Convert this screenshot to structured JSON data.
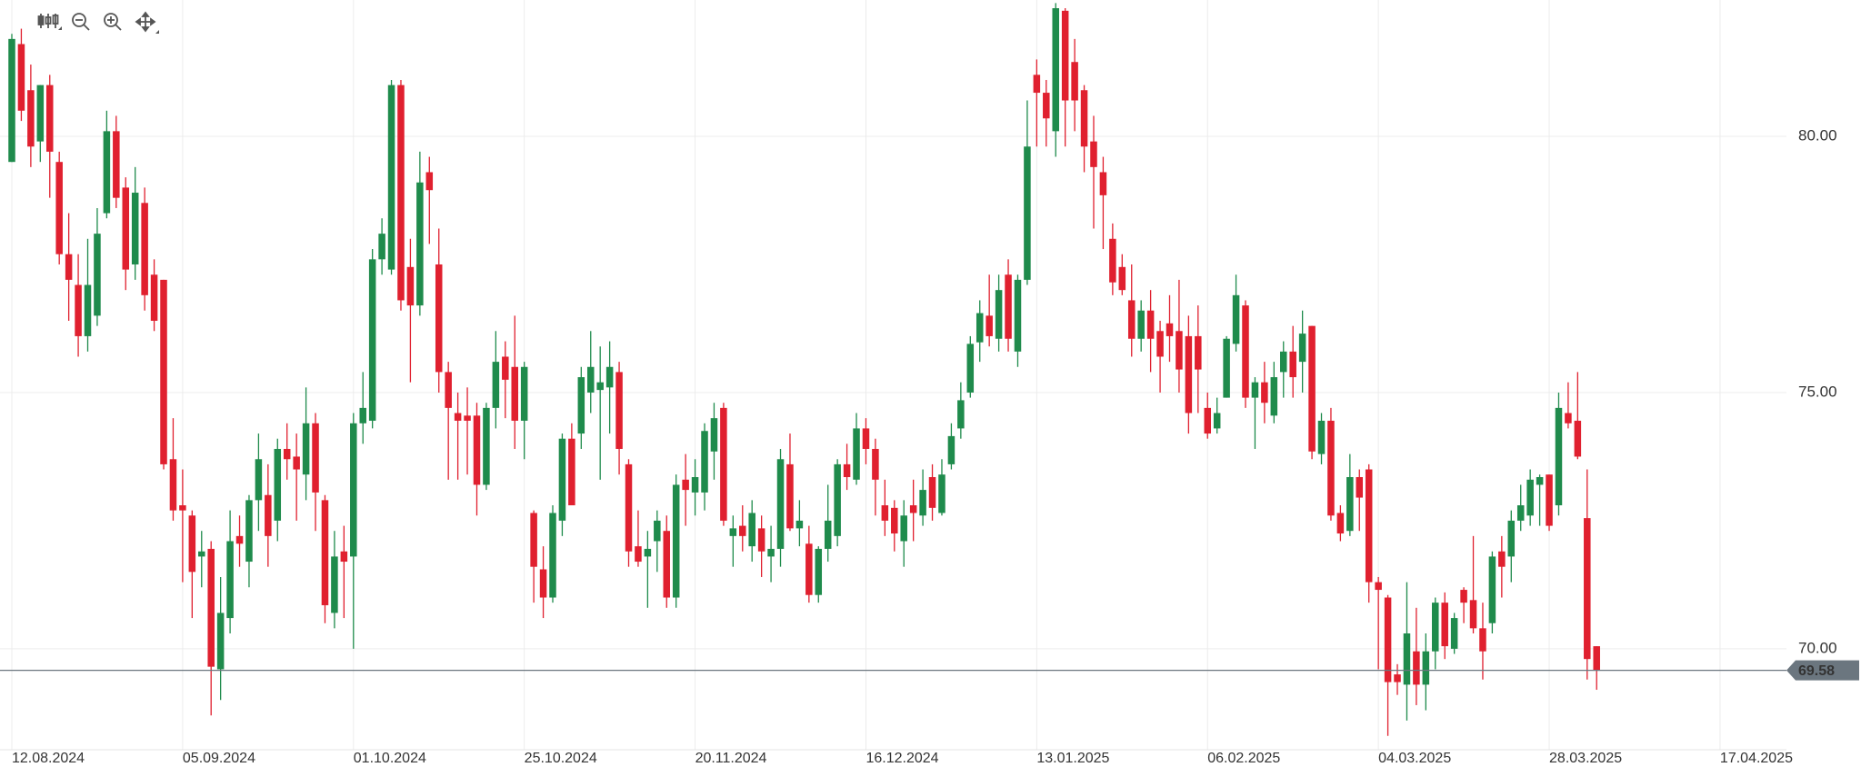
{
  "chart_data": {
    "type": "candlestick",
    "categories": [
      "12.08.2024",
      null,
      null,
      null,
      null,
      null,
      null,
      null,
      null,
      null,
      null,
      null,
      null,
      null,
      null,
      null,
      null,
      null,
      "05.09.2024",
      null,
      null,
      null,
      null,
      null,
      null,
      null,
      null,
      null,
      null,
      null,
      null,
      null,
      null,
      null,
      null,
      null,
      "01.10.2024",
      null,
      null,
      null,
      null,
      null,
      null,
      null,
      null,
      null,
      null,
      null,
      null,
      null,
      null,
      null,
      null,
      null,
      "25.10.2024",
      null,
      null,
      null,
      null,
      null,
      null,
      null,
      null,
      null,
      null,
      null,
      null,
      null,
      null,
      null,
      null,
      null,
      "20.11.2024",
      null,
      null,
      null,
      null,
      null,
      null,
      null,
      null,
      null,
      null,
      null,
      null,
      null,
      null,
      null,
      null,
      null,
      "16.12.2024",
      null,
      null,
      null,
      null,
      null,
      null,
      null,
      null,
      null,
      null,
      null,
      null,
      null,
      null,
      null,
      null,
      null,
      "13.01.2025",
      null,
      null,
      null,
      null,
      null,
      null,
      null,
      null,
      null,
      null,
      null,
      null,
      null,
      null,
      null,
      null,
      null,
      "06.02.2025",
      null,
      null,
      null,
      null,
      null,
      null,
      null,
      null,
      null,
      null,
      null,
      null,
      null,
      null,
      null,
      null,
      null,
      "04.03.2025",
      null,
      null,
      null,
      null,
      null,
      null,
      null,
      null,
      null,
      null,
      null,
      null,
      null,
      null,
      null,
      null,
      null,
      "28.03.2025",
      null,
      null,
      null,
      null,
      null,
      null,
      null,
      null,
      null,
      null,
      null,
      null,
      null,
      null,
      null,
      null,
      null,
      "17.04.2025"
    ],
    "open": [
      79.5,
      81.8,
      80.9,
      79.9,
      81.0,
      79.5,
      77.7,
      77.1,
      76.1,
      76.5,
      78.5,
      80.1,
      79.0,
      77.5,
      78.7,
      77.3,
      77.2,
      73.7,
      72.8,
      72.6,
      71.8,
      71.95,
      69.6,
      70.6,
      72.2,
      71.7,
      72.9,
      73.0,
      72.5,
      73.9,
      73.75,
      73.4,
      74.4,
      72.9,
      70.7,
      71.9,
      71.8,
      74.4,
      74.45,
      77.6,
      77.4,
      81.0,
      77.45,
      76.7,
      79.3,
      77.5,
      75.4,
      74.6,
      74.55,
      74.55,
      73.2,
      74.7,
      75.7,
      75.5,
      74.45,
      72.65,
      71.55,
      71.0,
      72.5,
      74.1,
      74.2,
      75.0,
      75.05,
      75.1,
      75.4,
      73.6,
      72.0,
      71.8,
      72.1,
      72.3,
      71.0,
      73.3,
      73.05,
      73.05,
      73.85,
      74.7,
      72.2,
      72.4,
      72.0,
      72.35,
      71.8,
      71.95,
      73.6,
      72.35,
      72.05,
      71.05,
      71.95,
      72.2,
      73.6,
      73.3,
      74.3,
      73.9,
      72.8,
      72.75,
      72.1,
      72.8,
      72.6,
      73.35,
      72.65,
      73.6,
      74.3,
      75.0,
      75.98,
      76.5,
      76.05,
      77.3,
      75.8,
      77.2,
      81.2,
      80.85,
      80.1,
      82.45,
      81.45,
      80.9,
      79.9,
      79.3,
      78.0,
      77.45,
      76.8,
      76.05,
      76.6,
      76.2,
      76.35,
      76.2,
      76.1,
      76.1,
      74.7,
      74.3,
      74.9,
      75.95,
      76.7,
      74.9,
      75.2,
      74.55,
      75.4,
      75.8,
      75.6,
      76.3,
      73.8,
      74.45,
      72.65,
      72.3,
      73.35,
      73.5,
      71.3,
      71.0,
      69.5,
      69.3,
      69.95,
      69.3,
      69.95,
      70.9,
      70.0,
      71.15,
      70.95,
      70.4,
      70.5,
      71.9,
      71.8,
      72.5,
      72.6,
      73.2,
      73.4,
      72.8,
      74.6,
      74.45,
      72.55,
      70.05,
      null,
      null,
      null,
      null,
      null,
      null,
      null,
      null,
      null,
      null,
      null,
      null,
      null
    ],
    "high": [
      82.0,
      82.1,
      81.4,
      81.0,
      81.2,
      79.7,
      78.5,
      77.7,
      78.0,
      78.6,
      80.5,
      80.4,
      79.2,
      79.4,
      79.0,
      77.6,
      77.2,
      74.5,
      73.5,
      72.7,
      72.3,
      72.1,
      71.4,
      72.7,
      72.6,
      73.0,
      74.2,
      73.6,
      74.1,
      74.4,
      74.2,
      75.1,
      74.6,
      73.0,
      72.3,
      72.4,
      74.6,
      75.4,
      77.8,
      78.4,
      81.1,
      81.1,
      78.0,
      79.7,
      79.6,
      78.2,
      75.6,
      75.0,
      75.1,
      74.8,
      74.8,
      76.2,
      76.0,
      76.5,
      75.6,
      72.7,
      72.0,
      72.8,
      74.2,
      74.4,
      75.5,
      76.2,
      75.9,
      76.0,
      75.6,
      73.7,
      72.7,
      72.3,
      72.7,
      72.6,
      73.4,
      73.8,
      73.7,
      74.4,
      74.8,
      74.8,
      72.6,
      72.8,
      72.9,
      72.6,
      72.4,
      73.9,
      74.2,
      72.9,
      72.4,
      72.0,
      73.2,
      73.7,
      74.0,
      74.6,
      74.5,
      74.1,
      73.3,
      72.9,
      72.9,
      73.3,
      73.5,
      73.6,
      73.7,
      74.4,
      75.2,
      76.1,
      76.8,
      77.3,
      77.3,
      77.6,
      77.3,
      80.7,
      81.5,
      81.1,
      82.6,
      82.5,
      81.9,
      81.0,
      80.4,
      79.6,
      78.3,
      77.7,
      77.5,
      76.8,
      77.0,
      76.4,
      76.9,
      77.2,
      76.5,
      76.7,
      75.0,
      74.9,
      76.1,
      77.3,
      76.8,
      75.3,
      75.6,
      75.6,
      76.0,
      76.3,
      76.6,
      76.3,
      74.6,
      74.7,
      72.8,
      73.8,
      73.5,
      73.6,
      71.4,
      71.05,
      69.7,
      71.3,
      70.8,
      70.3,
      71.0,
      71.1,
      70.7,
      71.2,
      72.2,
      70.9,
      71.9,
      72.2,
      72.7,
      73.2,
      73.5,
      73.4,
      73.4,
      75.0,
      75.2,
      75.4,
      73.5,
      70.05,
      null,
      null,
      null,
      null,
      null,
      null,
      null,
      null,
      null,
      null,
      null,
      null,
      null
    ],
    "low": [
      79.5,
      80.3,
      79.4,
      79.5,
      78.8,
      77.5,
      76.4,
      75.7,
      75.8,
      76.3,
      78.4,
      78.6,
      77.0,
      77.2,
      76.6,
      76.2,
      73.5,
      72.5,
      71.3,
      70.6,
      71.2,
      68.7,
      69.0,
      70.3,
      71.6,
      71.2,
      72.3,
      71.6,
      72.1,
      73.3,
      72.5,
      72.9,
      72.3,
      70.5,
      70.4,
      70.6,
      70.0,
      74.0,
      74.3,
      77.3,
      77.3,
      76.6,
      75.2,
      76.5,
      77.9,
      75.0,
      73.3,
      73.3,
      73.4,
      72.6,
      73.1,
      74.3,
      74.5,
      73.9,
      73.7,
      70.9,
      70.6,
      70.9,
      72.2,
      72.8,
      73.9,
      74.6,
      73.3,
      74.2,
      73.4,
      71.6,
      71.6,
      70.8,
      71.5,
      70.8,
      70.8,
      72.4,
      72.6,
      72.7,
      73.3,
      72.4,
      71.6,
      71.9,
      71.7,
      71.4,
      71.3,
      71.6,
      72.3,
      72.0,
      70.9,
      70.9,
      71.7,
      72.0,
      73.1,
      73.2,
      73.6,
      72.6,
      72.2,
      71.9,
      71.6,
      72.1,
      72.4,
      72.5,
      72.6,
      73.5,
      74.1,
      74.9,
      75.6,
      75.9,
      75.8,
      75.8,
      75.5,
      77.1,
      79.8,
      79.8,
      79.6,
      79.8,
      80.1,
      79.3,
      78.2,
      77.8,
      76.9,
      76.9,
      75.7,
      75.8,
      75.4,
      75.0,
      75.6,
      75.0,
      74.2,
      74.6,
      74.1,
      74.2,
      74.9,
      75.8,
      74.7,
      73.9,
      74.4,
      74.4,
      74.9,
      74.9,
      75.0,
      73.7,
      73.6,
      72.5,
      72.1,
      72.2,
      72.3,
      70.9,
      69.6,
      68.3,
      69.1,
      68.6,
      68.9,
      68.8,
      69.6,
      69.8,
      69.9,
      70.5,
      70.3,
      69.4,
      70.3,
      71.0,
      71.3,
      72.3,
      72.4,
      72.4,
      72.3,
      72.6,
      74.3,
      73.7,
      69.4,
      69.2,
      null,
      null,
      null,
      null,
      null,
      null,
      null,
      null,
      null,
      null,
      null,
      null,
      null
    ],
    "close": [
      81.9,
      80.5,
      79.8,
      81.0,
      79.7,
      77.7,
      77.2,
      76.1,
      77.1,
      78.1,
      80.1,
      78.8,
      77.4,
      78.9,
      76.9,
      76.4,
      73.6,
      72.7,
      72.7,
      71.5,
      71.9,
      69.65,
      70.7,
      72.1,
      72.05,
      72.9,
      73.7,
      72.2,
      73.9,
      73.7,
      73.5,
      74.4,
      73.05,
      70.85,
      71.8,
      71.7,
      74.4,
      74.7,
      77.6,
      78.1,
      81.0,
      76.8,
      76.7,
      79.1,
      78.95,
      75.4,
      74.7,
      74.45,
      74.45,
      73.2,
      74.7,
      75.6,
      75.25,
      74.45,
      75.5,
      71.6,
      71.0,
      72.65,
      74.1,
      72.8,
      75.3,
      75.5,
      75.2,
      75.5,
      73.9,
      71.9,
      71.7,
      71.95,
      72.5,
      71.0,
      73.2,
      73.1,
      73.35,
      74.25,
      74.5,
      72.5,
      72.35,
      72.2,
      72.65,
      71.9,
      71.95,
      73.7,
      72.35,
      72.5,
      71.05,
      71.95,
      72.5,
      73.6,
      73.35,
      74.3,
      73.9,
      73.3,
      72.5,
      72.25,
      72.6,
      72.65,
      73.1,
      72.75,
      73.4,
      74.15,
      74.85,
      75.95,
      76.55,
      76.1,
      77.0,
      76.05,
      77.2,
      79.8,
      80.85,
      80.35,
      82.5,
      80.7,
      80.7,
      79.8,
      79.4,
      78.85,
      77.15,
      77.0,
      76.05,
      76.6,
      76.05,
      75.7,
      76.1,
      75.45,
      74.6,
      75.45,
      74.2,
      74.6,
      76.05,
      76.9,
      74.9,
      75.2,
      74.8,
      75.3,
      75.8,
      75.3,
      76.15,
      73.85,
      74.45,
      72.6,
      72.25,
      73.35,
      72.95,
      71.3,
      71.15,
      69.35,
      69.35,
      70.3,
      69.3,
      69.95,
      70.9,
      70.05,
      70.6,
      70.9,
      70.4,
      69.95,
      71.8,
      71.6,
      72.5,
      72.8,
      73.3,
      73.35,
      72.4,
      74.7,
      74.4,
      73.75,
      69.8,
      69.58,
      null,
      null,
      null,
      null,
      null,
      null,
      null,
      null,
      null,
      null,
      null,
      null,
      null
    ],
    "up_color": "#1f8b4c",
    "down_color": "#e0202f",
    "ylim": [
      68.03,
      82.66
    ],
    "yticks": [
      {
        "value": 70,
        "label": "70.00"
      },
      {
        "value": 75,
        "label": "75.00"
      },
      {
        "value": 80,
        "label": "80.00"
      }
    ],
    "grid": true,
    "last_price": 69.58
  }
}
